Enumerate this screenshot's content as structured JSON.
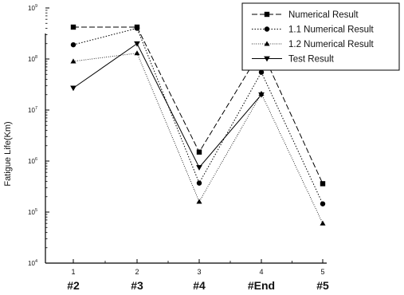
{
  "chart_data": {
    "type": "line",
    "title": "",
    "xlabel": "",
    "ylabel": "Fatigue Life(Km)",
    "yscale": "log",
    "ylim": [
      10000,
      1000000000
    ],
    "x": [
      1,
      2,
      3,
      4,
      5
    ],
    "x_tick_labels": [
      "1",
      "2",
      "3",
      "4",
      "5"
    ],
    "categories": [
      "#2",
      "#3",
      "#4",
      "#End",
      "#5"
    ],
    "y_tick_labels": [
      {
        "value": 10000,
        "base": "10",
        "exp": "4"
      },
      {
        "value": 100000,
        "base": "10",
        "exp": "5"
      },
      {
        "value": 1000000,
        "base": "10",
        "exp": "6"
      },
      {
        "value": 10000000,
        "base": "10",
        "exp": "7"
      },
      {
        "value": 100000000,
        "base": "10",
        "exp": "8"
      },
      {
        "value": 1000000000,
        "base": "10",
        "exp": "9"
      }
    ],
    "grid": false,
    "legend_position": "top-right",
    "series": [
      {
        "name": "Numerical Result",
        "marker": "square",
        "dash": "7,3",
        "values": [
          500000000,
          1400000000,
          1500000,
          150000000,
          360000
        ]
      },
      {
        "name": "1.1 Numerical Result",
        "marker": "circle",
        "dash": "1.5,2",
        "values": [
          190000000,
          400000000,
          370000,
          55000000,
          145000
        ]
      },
      {
        "name": "1.2 Numerical Result",
        "marker": "triangle-up",
        "dash": "0.8,1.8",
        "values": [
          90000000,
          130000000,
          160000,
          21000000,
          60000
        ]
      },
      {
        "name": "Test Result",
        "marker": "triangle-down",
        "dash": "",
        "values": [
          27000000,
          200000000,
          750000,
          20000000,
          null
        ]
      }
    ]
  }
}
